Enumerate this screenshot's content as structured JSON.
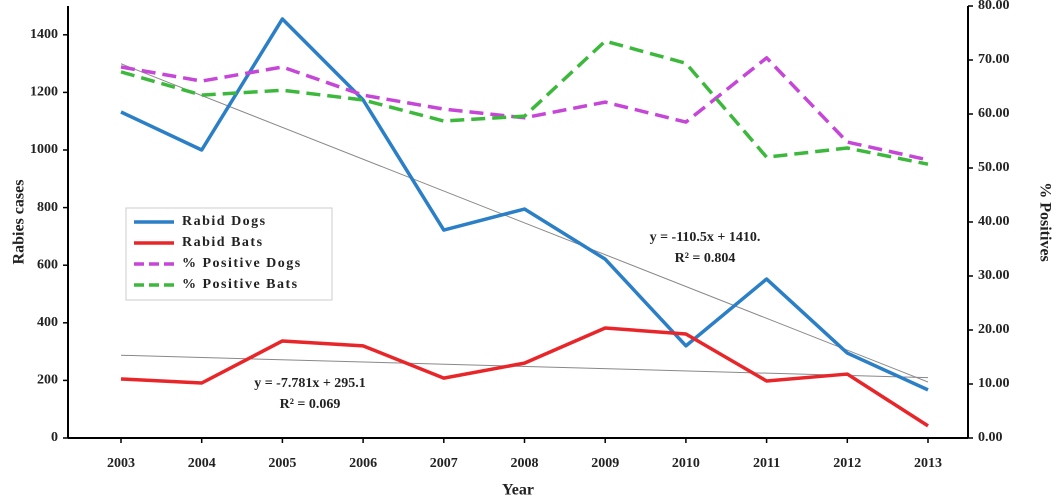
{
  "chart_data": {
    "type": "line",
    "xlabel": "Year",
    "ylabel": "Rabies cases",
    "y2label": "% Positives",
    "categories": [
      "2003",
      "2004",
      "2005",
      "2006",
      "2007",
      "2008",
      "2009",
      "2010",
      "2011",
      "2012",
      "2013"
    ],
    "ylim": [
      0,
      1500
    ],
    "yticks": [
      0,
      200,
      400,
      600,
      800,
      1000,
      1200,
      1400
    ],
    "y2lim": [
      0,
      80
    ],
    "y2ticks": [
      {
        "value": 0,
        "label": "0.00"
      },
      {
        "value": 10,
        "label": "10.00"
      },
      {
        "value": 20,
        "label": "20.00"
      },
      {
        "value": 30,
        "label": "30.00"
      },
      {
        "value": 40,
        "label": "40.00"
      },
      {
        "value": 50,
        "label": "50.00"
      },
      {
        "value": 60,
        "label": "60.00"
      },
      {
        "value": 70,
        "label": "70.00"
      },
      {
        "value": 80,
        "label": "80.00"
      }
    ],
    "legend": "left",
    "series": [
      {
        "name": "Rabid Dogs",
        "color": "#2b7fc6",
        "style": "solid",
        "values": [
          1132,
          1000,
          1455,
          1174,
          722,
          795,
          621,
          320,
          552,
          295,
          167
        ]
      },
      {
        "name": "Rabid Bats",
        "color": "#e8262a",
        "style": "solid",
        "values": [
          205,
          191,
          337,
          320,
          208,
          260,
          382,
          361,
          198,
          222,
          42
        ]
      },
      {
        "name": "% Positive Dogs",
        "color": "#c646d8",
        "style": "dashed",
        "axis": "y2",
        "values": [
          68.7,
          66.1,
          68.7,
          63.5,
          60.9,
          59.3,
          62.2,
          58.5,
          70.4,
          54.8,
          51.5
        ]
      },
      {
        "name": "% Positive Bats",
        "color": "#3cb93c",
        "style": "dashed",
        "axis": "y2",
        "values": [
          67.8,
          63.5,
          64.4,
          62.6,
          58.7,
          59.6,
          73.5,
          69.4,
          52.0,
          53.7,
          50.7
        ]
      }
    ],
    "trendlines": [
      {
        "slope": -110.5,
        "intercept": 1410,
        "equation": "y = -110.5x + 1410.",
        "r2": "R² = 0.804"
      },
      {
        "slope": -7.781,
        "intercept": 295.1,
        "equation": "y = -7.781x + 295.1",
        "r2": "R² = 0.069"
      }
    ]
  }
}
